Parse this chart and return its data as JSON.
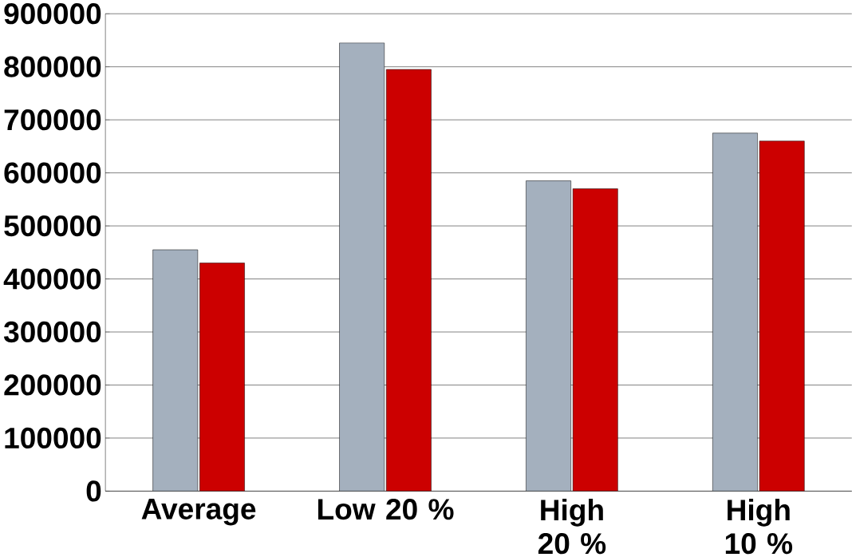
{
  "chart_data": {
    "type": "bar",
    "categories": [
      "Average",
      "Low 20 %",
      "High 20 %",
      "High 10 %"
    ],
    "series": [
      {
        "color": "#a4b0be",
        "values": [
          455000,
          845000,
          585000,
          675000
        ]
      },
      {
        "color": "#cc0000",
        "values": [
          430000,
          795000,
          570000,
          660000
        ]
      }
    ],
    "ylim": [
      0,
      900000
    ],
    "yticks": [
      0,
      100000,
      200000,
      300000,
      400000,
      500000,
      600000,
      700000,
      800000,
      900000
    ],
    "grid": "y"
  }
}
